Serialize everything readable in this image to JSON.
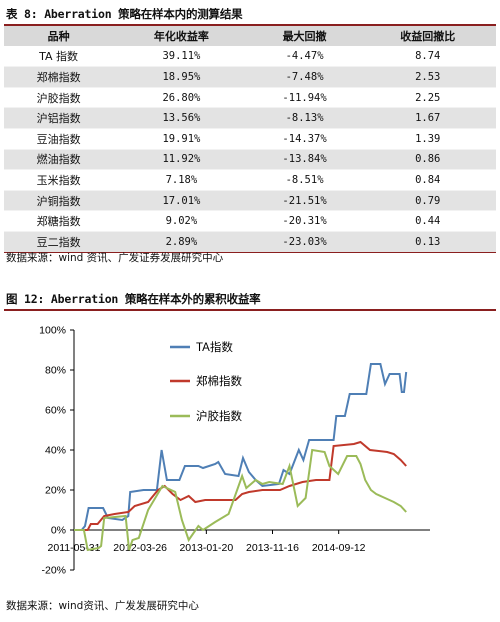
{
  "table_section": {
    "caption": "表 8: Aberration 策略在样本内的测算结果",
    "headers": [
      "品种",
      "年化收益率",
      "最大回撤",
      "收益回撤比"
    ],
    "rows": [
      [
        "TA 指数",
        "39.11%",
        "-4.47%",
        "8.74"
      ],
      [
        "郑棉指数",
        "18.95%",
        "-7.48%",
        "2.53"
      ],
      [
        "沪胶指数",
        "26.80%",
        "-11.94%",
        "2.25"
      ],
      [
        "沪铝指数",
        "13.56%",
        "-8.13%",
        "1.67"
      ],
      [
        "豆油指数",
        "19.91%",
        "-14.37%",
        "1.39"
      ],
      [
        "燃油指数",
        "11.92%",
        "-13.84%",
        "0.86"
      ],
      [
        "玉米指数",
        "7.18%",
        "-8.51%",
        "0.84"
      ],
      [
        "沪铜指数",
        "17.01%",
        "-21.51%",
        "0.79"
      ],
      [
        "郑糖指数",
        "9.02%",
        "-20.31%",
        "0.44"
      ],
      [
        "豆二指数",
        "2.89%",
        "-23.03%",
        "0.13"
      ]
    ],
    "source": "数据来源：wind 资讯、广发证券发展研究中心"
  },
  "chart_section": {
    "caption": "图 12: Aberration 策略在样本外的累积收益率",
    "source": "数据来源：wind资讯、广发发展研究中心"
  },
  "chart_data": {
    "type": "line",
    "title": "",
    "xlabel": "",
    "ylabel": "",
    "ylim": [
      -20,
      100
    ],
    "yticks": [
      -20,
      0,
      20,
      40,
      60,
      80,
      100
    ],
    "ytick_labels": [
      "-20%",
      "0%",
      "20%",
      "40%",
      "60%",
      "80%",
      "100%"
    ],
    "xlim": [
      "2011-05-31",
      "2015-10-31"
    ],
    "xticks": [
      "2011-05-31",
      "2012-03-26",
      "2013-01-20",
      "2013-11-16",
      "2014-09-12"
    ],
    "grid": false,
    "legend_position": "inside-top-left",
    "series": [
      {
        "name": "TA指数",
        "color": "#4f7fb5",
        "points": [
          [
            "2011-05-31",
            0
          ],
          [
            "2011-07-05",
            0
          ],
          [
            "2011-07-20",
            2
          ],
          [
            "2011-08-05",
            11
          ],
          [
            "2011-10-10",
            11
          ],
          [
            "2011-11-01",
            6
          ],
          [
            "2012-01-05",
            5
          ],
          [
            "2012-02-01",
            7
          ],
          [
            "2012-02-10",
            19
          ],
          [
            "2012-04-10",
            20
          ],
          [
            "2012-06-10",
            20
          ],
          [
            "2012-07-01",
            40
          ],
          [
            "2012-07-25",
            25
          ],
          [
            "2012-09-20",
            25
          ],
          [
            "2012-10-15",
            32
          ],
          [
            "2012-12-15",
            32
          ],
          [
            "2013-01-05",
            31
          ],
          [
            "2013-03-01",
            33
          ],
          [
            "2013-03-15",
            34
          ],
          [
            "2013-04-15",
            28
          ],
          [
            "2013-06-15",
            27
          ],
          [
            "2013-07-05",
            36
          ],
          [
            "2013-08-01",
            29
          ],
          [
            "2013-09-01",
            25
          ],
          [
            "2013-10-01",
            22
          ],
          [
            "2013-12-15",
            23
          ],
          [
            "2014-01-05",
            30
          ],
          [
            "2014-02-01",
            28
          ],
          [
            "2014-03-15",
            40
          ],
          [
            "2014-04-05",
            35
          ],
          [
            "2014-05-01",
            45
          ],
          [
            "2014-08-20",
            45
          ],
          [
            "2014-09-01",
            57
          ],
          [
            "2014-10-10",
            57
          ],
          [
            "2014-11-01",
            68
          ],
          [
            "2015-01-15",
            68
          ],
          [
            "2015-02-05",
            83
          ],
          [
            "2015-03-20",
            83
          ],
          [
            "2015-04-10",
            73
          ],
          [
            "2015-05-01",
            78
          ],
          [
            "2015-06-15",
            78
          ],
          [
            "2015-06-25",
            69
          ],
          [
            "2015-07-05",
            69
          ],
          [
            "2015-07-15",
            79
          ]
        ]
      },
      {
        "name": "郑棉指数",
        "color": "#c0392b",
        "points": [
          [
            "2011-05-31",
            0
          ],
          [
            "2011-08-01",
            0
          ],
          [
            "2011-08-15",
            3
          ],
          [
            "2011-09-15",
            3
          ],
          [
            "2011-10-15",
            7
          ],
          [
            "2011-12-01",
            8
          ],
          [
            "2012-02-01",
            9
          ],
          [
            "2012-03-01",
            12
          ],
          [
            "2012-05-01",
            14
          ],
          [
            "2012-06-15",
            20
          ],
          [
            "2012-07-15",
            22
          ],
          [
            "2012-08-20",
            18
          ],
          [
            "2012-09-25",
            15
          ],
          [
            "2012-11-01",
            17
          ],
          [
            "2012-12-01",
            14
          ],
          [
            "2013-01-15",
            15
          ],
          [
            "2013-06-01",
            15
          ],
          [
            "2013-07-01",
            18
          ],
          [
            "2013-08-01",
            19
          ],
          [
            "2013-10-01",
            20
          ],
          [
            "2013-12-20",
            20
          ],
          [
            "2014-02-01",
            22
          ],
          [
            "2014-04-01",
            24
          ],
          [
            "2014-06-01",
            25
          ],
          [
            "2014-08-01",
            25
          ],
          [
            "2014-08-20",
            42
          ],
          [
            "2014-11-20",
            43
          ],
          [
            "2014-12-20",
            44
          ],
          [
            "2015-02-01",
            40
          ],
          [
            "2015-04-20",
            39
          ],
          [
            "2015-05-20",
            38
          ],
          [
            "2015-06-20",
            35
          ],
          [
            "2015-07-15",
            32
          ]
        ]
      },
      {
        "name": "沪胶指数",
        "color": "#9bbb59",
        "points": [
          [
            "2011-05-31",
            0
          ],
          [
            "2011-07-15",
            0
          ],
          [
            "2011-08-01",
            -10
          ],
          [
            "2011-09-20",
            -9
          ],
          [
            "2011-10-01",
            -8
          ],
          [
            "2011-10-15",
            6
          ],
          [
            "2012-01-20",
            7
          ],
          [
            "2012-02-05",
            -10
          ],
          [
            "2012-02-20",
            -5
          ],
          [
            "2012-03-20",
            -4
          ],
          [
            "2012-05-01",
            10
          ],
          [
            "2012-07-05",
            22
          ],
          [
            "2012-09-01",
            19
          ],
          [
            "2012-10-01",
            5
          ],
          [
            "2012-11-01",
            -5
          ],
          [
            "2012-12-15",
            2
          ],
          [
            "2013-01-05",
            0
          ],
          [
            "2013-03-01",
            4
          ],
          [
            "2013-05-01",
            8
          ],
          [
            "2013-07-01",
            27
          ],
          [
            "2013-07-20",
            21
          ],
          [
            "2013-09-01",
            25
          ],
          [
            "2013-10-01",
            23
          ],
          [
            "2013-11-01",
            24
          ],
          [
            "2014-01-01",
            23
          ],
          [
            "2014-02-01",
            32
          ],
          [
            "2014-03-10",
            12
          ],
          [
            "2014-04-15",
            16
          ],
          [
            "2014-05-15",
            40
          ],
          [
            "2014-07-10",
            39
          ],
          [
            "2014-08-01",
            32
          ],
          [
            "2014-09-10",
            28
          ],
          [
            "2014-10-20",
            37
          ],
          [
            "2014-12-01",
            37
          ],
          [
            "2014-12-20",
            33
          ],
          [
            "2015-01-10",
            25
          ],
          [
            "2015-02-05",
            20
          ],
          [
            "2015-03-01",
            18
          ],
          [
            "2015-04-10",
            16
          ],
          [
            "2015-05-20",
            14
          ],
          [
            "2015-06-20",
            12
          ],
          [
            "2015-07-15",
            9
          ]
        ]
      }
    ]
  }
}
